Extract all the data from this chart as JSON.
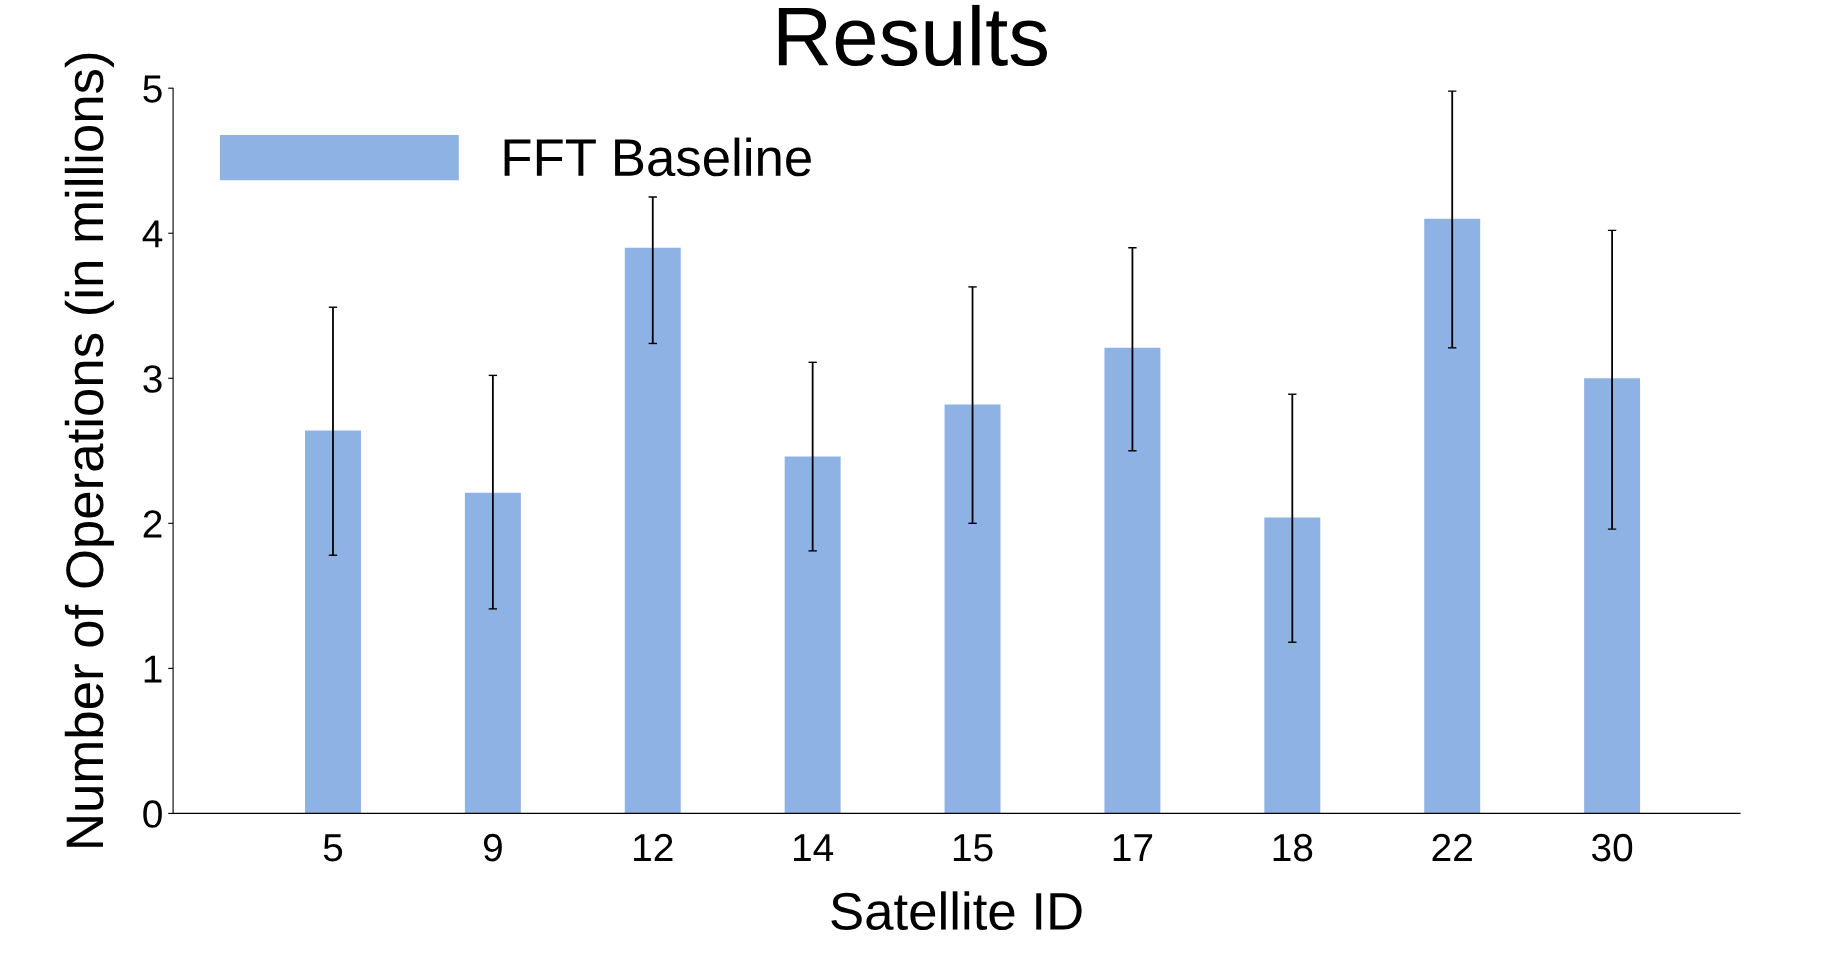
{
  "chart_data": {
    "type": "bar",
    "title": "Results",
    "xlabel": "Satellite ID",
    "ylabel": "Number of Operations (in millions)",
    "categories": [
      "5",
      "9",
      "12",
      "14",
      "15",
      "17",
      "18",
      "22",
      "30"
    ],
    "series": [
      {
        "name": "FFT Baseline",
        "color": "#8fb2e4",
        "values": [
          2.64,
          2.21,
          3.9,
          2.46,
          2.82,
          3.21,
          2.04,
          4.1,
          3.0
        ],
        "errors": [
          [
            1.78,
            3.49
          ],
          [
            1.41,
            3.02
          ],
          [
            3.24,
            4.25
          ],
          [
            1.81,
            3.11
          ],
          [
            2.0,
            3.63
          ],
          [
            2.5,
            3.9
          ],
          [
            1.18,
            2.89
          ],
          [
            3.21,
            4.98
          ],
          [
            1.96,
            4.02
          ]
        ]
      }
    ],
    "ylim": [
      0,
      5
    ],
    "yticks": [
      0,
      1,
      2,
      3,
      4,
      5
    ],
    "grid": false,
    "legend": "top left"
  }
}
